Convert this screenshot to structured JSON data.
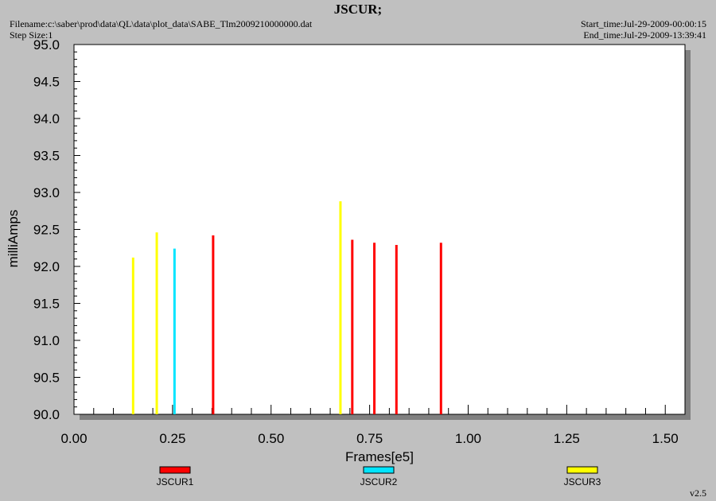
{
  "header": {
    "title": "JSCUR;",
    "filename": "Filename:c:\\saber\\prod\\data\\QL\\data\\plot_data\\SABE_Tlm2009210000000.dat",
    "step_size": "Step Size:1",
    "start_time": "Start_time:Jul-29-2009-00:00:15",
    "end_time": "End_time:Jul-29-2009-13:39:41"
  },
  "footer": {
    "version": "v2.5"
  },
  "chart_data": {
    "type": "bar",
    "title": "JSCUR;",
    "xlabel": "Frames[e5]",
    "ylabel": "milliAmps",
    "xlim": [
      0.0,
      1.55
    ],
    "ylim": [
      90.0,
      95.0
    ],
    "x_ticks": [
      "0.00",
      "0.25",
      "0.50",
      "0.75",
      "1.00",
      "1.25",
      "1.50"
    ],
    "x_tick_values": [
      0.0,
      0.25,
      0.5,
      0.75,
      1.0,
      1.25,
      1.5
    ],
    "y_ticks": [
      "90.0",
      "90.5",
      "91.0",
      "91.5",
      "92.0",
      "92.5",
      "93.0",
      "93.5",
      "94.0",
      "94.5",
      "95.0"
    ],
    "y_tick_values": [
      90.0,
      90.5,
      91.0,
      91.5,
      92.0,
      92.5,
      93.0,
      93.5,
      94.0,
      94.5,
      95.0
    ],
    "legend_placement": "bottom",
    "grid": false,
    "series": [
      {
        "name": "JSCUR1",
        "color": "#ff0000",
        "points": [
          {
            "x": 0.353,
            "y": 92.42
          },
          {
            "x": 0.706,
            "y": 92.36
          },
          {
            "x": 0.762,
            "y": 92.32
          },
          {
            "x": 0.818,
            "y": 92.29
          },
          {
            "x": 0.931,
            "y": 92.32
          }
        ]
      },
      {
        "name": "JSCUR2",
        "color": "#00e5ff",
        "points": [
          {
            "x": 0.255,
            "y": 92.24
          }
        ]
      },
      {
        "name": "JSCUR3",
        "color": "#ffff00",
        "points": [
          {
            "x": 0.15,
            "y": 92.12
          },
          {
            "x": 0.21,
            "y": 92.46
          },
          {
            "x": 0.676,
            "y": 92.88
          }
        ]
      }
    ]
  }
}
